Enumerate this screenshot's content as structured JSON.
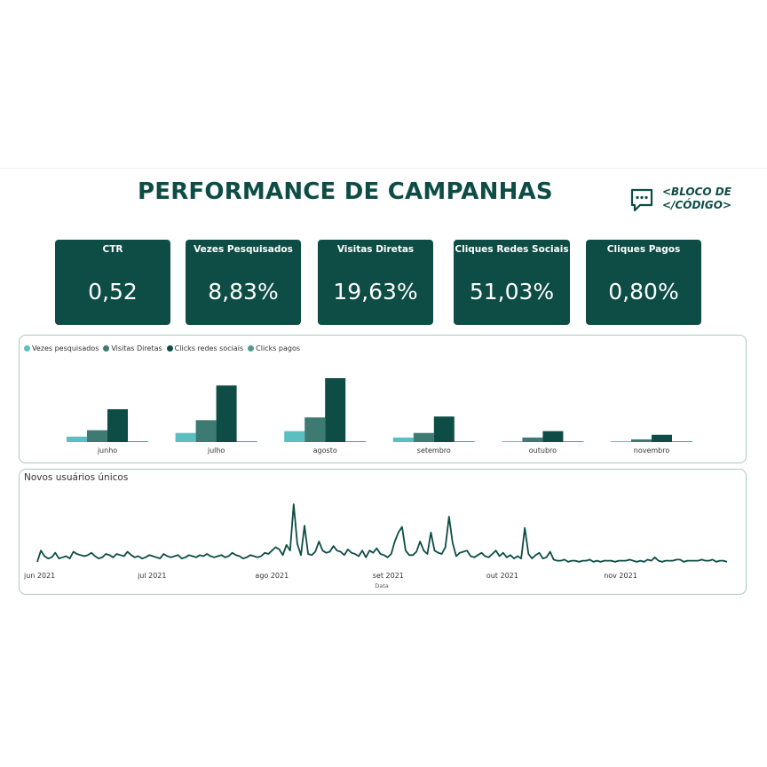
{
  "header": {
    "title": "PERFORMANCE DE CAMPANHAS",
    "logo_line1": "<BLOCO DE",
    "logo_line2": "</CÓDIGO>"
  },
  "kpis": [
    {
      "label": "CTR",
      "value": "0,52"
    },
    {
      "label": "Vezes Pesquisados",
      "value": "8,83%"
    },
    {
      "label": "Visitas Diretas",
      "value": "19,63%"
    },
    {
      "label": "Cliques Redes Sociais",
      "value": "51,03%"
    },
    {
      "label": "Cliques Pagos",
      "value": "0,80%"
    }
  ],
  "colors": {
    "primary": "#0d4d45",
    "vezes": "#5cbfbf",
    "visitas": "#3d7a72",
    "clicks_sociais": "#0d4d45",
    "clicks_pagos": "#4f9c93"
  },
  "chart_data": [
    {
      "type": "bar",
      "categories": [
        "junho",
        "julho",
        "agosto",
        "setembro",
        "outubro",
        "novembro"
      ],
      "series": [
        {
          "name": "Vezes pesquisados",
          "values": [
            6,
            10,
            12,
            5,
            1,
            0.5
          ]
        },
        {
          "name": "Visitas Diretas",
          "values": [
            13,
            24,
            27,
            10,
            5,
            3
          ]
        },
        {
          "name": "Clicks redes sociais",
          "values": [
            36,
            62,
            70,
            28,
            12,
            8
          ]
        },
        {
          "name": "Clicks pagos",
          "values": [
            0.5,
            1,
            1,
            0.5,
            0.5,
            0.5
          ]
        }
      ],
      "legend": "top-left"
    },
    {
      "type": "line",
      "title": "Novos usuários únicos",
      "xlabel": "Data",
      "x_ticks": [
        "jun 2021",
        "jul 2021",
        "ago 2021",
        "set 2021",
        "out 2021",
        "nov 2021"
      ],
      "x_start": "2021-06-01",
      "x_end": "2021-11-30",
      "series": [
        {
          "values": [
            4,
            14,
            9,
            7,
            8,
            12,
            7,
            8,
            9,
            7,
            13,
            11,
            10,
            9,
            10,
            12,
            9,
            7,
            8,
            11,
            10,
            8,
            11,
            10,
            9,
            13,
            10,
            8,
            9,
            7,
            8,
            10,
            9,
            8,
            7,
            11,
            9,
            8,
            9,
            10,
            7,
            8,
            10,
            9,
            8,
            10,
            9,
            11,
            9,
            8,
            9,
            10,
            8,
            9,
            12,
            10,
            9,
            7,
            8,
            10,
            9,
            8,
            9,
            12,
            11,
            14,
            17,
            15,
            10,
            19,
            14,
            55,
            20,
            10,
            36,
            11,
            10,
            13,
            22,
            14,
            12,
            13,
            18,
            14,
            13,
            10,
            15,
            12,
            11,
            9,
            14,
            8,
            14,
            12,
            16,
            11,
            10,
            8,
            11,
            22,
            30,
            35,
            14,
            10,
            10,
            13,
            22,
            14,
            11,
            30,
            14,
            12,
            11,
            17,
            44,
            21,
            9,
            12,
            13,
            14,
            9,
            8,
            10,
            12,
            9,
            8,
            11,
            14,
            9,
            12,
            8,
            10,
            7,
            9,
            7,
            34,
            11,
            7,
            10,
            12,
            7,
            8,
            13,
            6,
            5,
            5,
            6,
            4,
            5,
            5,
            4,
            5,
            5,
            6,
            4,
            5,
            4,
            5,
            5,
            5,
            4,
            5,
            5,
            5,
            6,
            5,
            4,
            5,
            4,
            6,
            5,
            8,
            5,
            4,
            5,
            5,
            5,
            6,
            6,
            4,
            5,
            5,
            5,
            5,
            6,
            5,
            5,
            6,
            4,
            5,
            5,
            4
          ]
        }
      ]
    }
  ]
}
